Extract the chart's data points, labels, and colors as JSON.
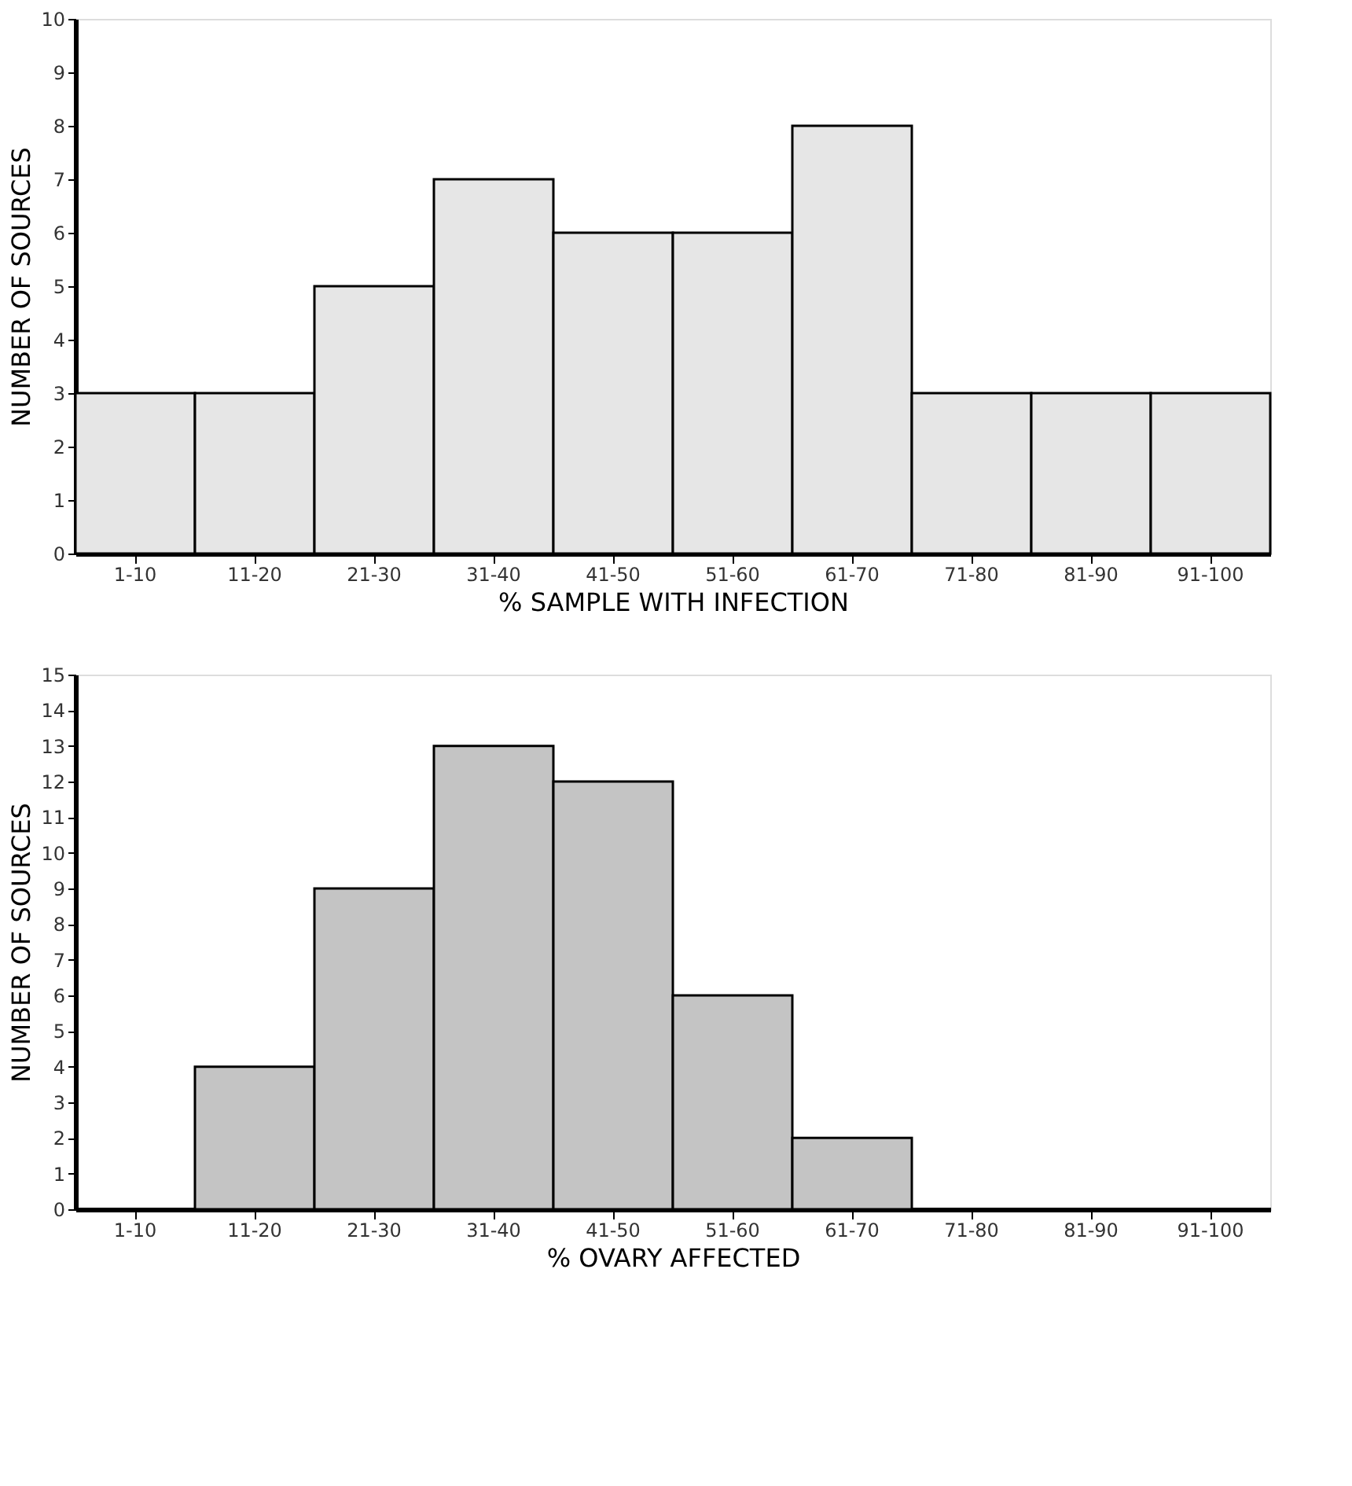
{
  "chart_data": [
    {
      "type": "bar",
      "categories": [
        "1-10",
        "11-20",
        "21-30",
        "31-40",
        "41-50",
        "51-60",
        "61-70",
        "71-80",
        "81-90",
        "91-100"
      ],
      "values": [
        3,
        3,
        5,
        7,
        6,
        6,
        8,
        3,
        3,
        3
      ],
      "color": "#e6e6e6",
      "xlabel": "% SAMPLE WITH INFECTION",
      "ylabel": "NUMBER OF SOURCES",
      "ylim": [
        0,
        10
      ],
      "yticks": [
        0,
        1,
        2,
        3,
        4,
        5,
        6,
        7,
        8,
        9,
        10
      ],
      "grid": false
    },
    {
      "type": "bar",
      "categories": [
        "1-10",
        "11-20",
        "21-30",
        "31-40",
        "41-50",
        "51-60",
        "61-70",
        "71-80",
        "81-90",
        "91-100"
      ],
      "values": [
        null,
        4,
        9,
        13,
        12,
        6,
        2,
        null,
        null,
        null
      ],
      "color": "#c4c4c4",
      "xlabel": "% OVARY AFFECTED",
      "ylabel": "NUMBER OF SOURCES",
      "ylim": [
        0,
        15
      ],
      "yticks": [
        0,
        1,
        2,
        3,
        4,
        5,
        6,
        7,
        8,
        9,
        10,
        11,
        12,
        13,
        14,
        15
      ],
      "grid": false
    }
  ]
}
